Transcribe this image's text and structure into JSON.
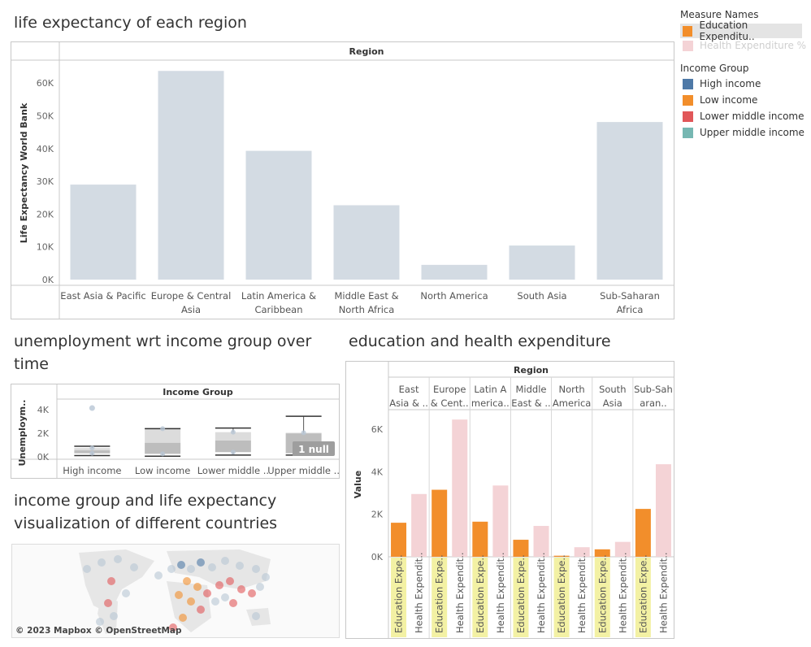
{
  "titles": {
    "life": "life expectancy of each region",
    "unemp_l1": "unemployment wrt income group over",
    "unemp_l2": "time",
    "edu": "education and health expenditure",
    "map_l1": "income group and life expectancy",
    "map_l2": "visualization of different countries"
  },
  "legend": {
    "measure_title": "Measure Names",
    "measure_items": [
      {
        "label": "Education Expenditu..",
        "color": "#f28e2b"
      },
      {
        "label": "Health Expenditure %",
        "color": "#f4d3d6"
      }
    ],
    "income_title": "Income Group",
    "income_items": [
      {
        "label": "High income",
        "color": "#4e79a7"
      },
      {
        "label": "Low income",
        "color": "#f28e2b"
      },
      {
        "label": "Lower middle income",
        "color": "#e15759"
      },
      {
        "label": "Upper middle income",
        "color": "#76b7b2"
      }
    ]
  },
  "map": {
    "credit": "© 2023 Mapbox © OpenStreetMap"
  },
  "chart_data": [
    {
      "type": "bar",
      "title": "life expectancy of each region",
      "header": "Region",
      "ylabel": "Life Expectancy World Bank",
      "ylim": [
        0,
        65000
      ],
      "yticks": [
        "0K",
        "10K",
        "20K",
        "30K",
        "40K",
        "50K",
        "60K"
      ],
      "categories": [
        [
          "East Asia & Pacific"
        ],
        [
          "Europe & Central",
          "Asia"
        ],
        [
          "Latin America &",
          "Caribbean"
        ],
        [
          "Middle East &",
          "North Africa"
        ],
        [
          "North America"
        ],
        [
          "South Asia"
        ],
        [
          "Sub-Saharan",
          "Africa"
        ]
      ],
      "values": [
        29000,
        63700,
        39300,
        22700,
        4500,
        10400,
        48100
      ],
      "color": "#d3dbe3"
    },
    {
      "type": "box",
      "title": "unemployment wrt income group over time",
      "header": "Income Group",
      "ylabel": "Unemploym..",
      "ylim": [
        0,
        4500
      ],
      "yticks": [
        "0K",
        "2K",
        "4K"
      ],
      "categories": [
        "High income",
        "Low income",
        "Lower middle ..",
        "Upper middle .."
      ],
      "boxes": [
        {
          "min": 100,
          "q1": 300,
          "median": 550,
          "q3": 750,
          "max": 900,
          "outlier": 4150
        },
        {
          "min": 50,
          "q1": 250,
          "median": 1200,
          "q3": 2400,
          "max": 2400,
          "outlier": null
        },
        {
          "min": 150,
          "q1": 400,
          "median": 1400,
          "q3": 2100,
          "max": 2450,
          "outlier": null
        },
        {
          "min": 150,
          "q1": 300,
          "median": 2000,
          "q3": 2050,
          "max": 3450,
          "outlier": null
        }
      ],
      "null_badge": "1 null"
    },
    {
      "type": "bar",
      "title": "education and health expenditure",
      "header": "Region",
      "ylabel": "Value",
      "ylim": [
        0,
        6800
      ],
      "yticks": [
        "0K",
        "2K",
        "4K",
        "6K"
      ],
      "regions": [
        [
          "East",
          "Asia & .."
        ],
        [
          "Europe",
          "& Cent.."
        ],
        [
          "Latin A",
          "merica.."
        ],
        [
          "Middle",
          "East & .."
        ],
        [
          "North",
          "America"
        ],
        [
          "South",
          "Asia"
        ],
        [
          "Sub-Sah",
          "aran.."
        ]
      ],
      "measure_labels": [
        "Education Expe..",
        "Health Expendit.."
      ],
      "series": [
        {
          "name": "Education Expenditu..",
          "color": "#f28e2b",
          "values": [
            1600,
            3150,
            1650,
            800,
            50,
            350,
            2250
          ]
        },
        {
          "name": "Health Expenditure %",
          "color": "#f4d3d6",
          "values": [
            2950,
            6450,
            3350,
            1450,
            450,
            700,
            4350
          ]
        }
      ]
    }
  ]
}
